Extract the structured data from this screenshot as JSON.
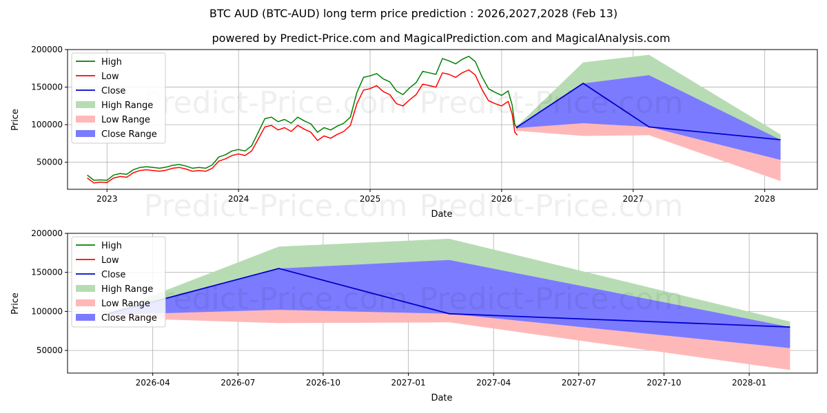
{
  "title": "BTC AUD (BTC-AUD) long term price prediction : 2026,2027,2028 (Feb 13)",
  "subtitle": "powered by Predict-Price.com and MagicalPrediction.com and MagicalAnalysis.com",
  "watermark": "Predict-Price.com",
  "colors": {
    "high": "#008000",
    "low": "#ff0000",
    "close": "#0000cc",
    "high_range": "#b7dcb3",
    "low_range": "#ffb8b8",
    "close_range": "#7b7bff"
  },
  "legend": {
    "high": "High",
    "low": "Low",
    "close": "Close",
    "high_range": "High Range",
    "low_range": "Low Range",
    "close_range": "Close Range"
  },
  "chart_data": [
    {
      "type": "line",
      "xlabel": "Date",
      "ylabel": "Price",
      "xlim": [
        2022.7,
        2028.4
      ],
      "ylim": [
        14000,
        200000
      ],
      "xticks": [
        {
          "v": 2023.0,
          "label": "2023"
        },
        {
          "v": 2024.0,
          "label": "2024"
        },
        {
          "v": 2025.0,
          "label": "2025"
        },
        {
          "v": 2026.0,
          "label": "2026"
        },
        {
          "v": 2027.0,
          "label": "2027"
        },
        {
          "v": 2028.0,
          "label": "2028"
        }
      ],
      "yticks": [
        {
          "v": 50000,
          "label": "50000"
        },
        {
          "v": 100000,
          "label": "100000"
        },
        {
          "v": 150000,
          "label": "150000"
        },
        {
          "v": 200000,
          "label": "200000"
        }
      ],
      "history": {
        "t": [
          2022.85,
          2022.9,
          2022.95,
          2023.0,
          2023.05,
          2023.1,
          2023.15,
          2023.2,
          2023.25,
          2023.3,
          2023.35,
          2023.4,
          2023.45,
          2023.5,
          2023.55,
          2023.6,
          2023.65,
          2023.7,
          2023.75,
          2023.8,
          2023.85,
          2023.9,
          2023.95,
          2024.0,
          2024.05,
          2024.1,
          2024.15,
          2024.2,
          2024.25,
          2024.3,
          2024.35,
          2024.4,
          2024.45,
          2024.5,
          2024.55,
          2024.6,
          2024.65,
          2024.7,
          2024.75,
          2024.8,
          2024.85,
          2024.9,
          2024.95,
          2025.0,
          2025.05,
          2025.1,
          2025.15,
          2025.2,
          2025.25,
          2025.3,
          2025.35,
          2025.4,
          2025.45,
          2025.5,
          2025.55,
          2025.6,
          2025.65,
          2025.7,
          2025.75,
          2025.8,
          2025.85,
          2025.9,
          2025.95,
          2026.0,
          2026.05,
          2026.08,
          2026.1,
          2026.12
        ],
        "close": [
          31000,
          24000,
          25000,
          24500,
          31000,
          33000,
          32000,
          38000,
          41000,
          42000,
          41000,
          40000,
          41500,
          44000,
          45000,
          43000,
          40000,
          41000,
          40000,
          44000,
          54000,
          57000,
          62000,
          64000,
          62000,
          68000,
          85000,
          102000,
          104000,
          98000,
          101000,
          96000,
          104000,
          99000,
          95000,
          84000,
          90000,
          87000,
          92000,
          96000,
          104000,
          135000,
          154000,
          156000,
          160000,
          152000,
          148000,
          136000,
          132000,
          141000,
          148000,
          162000,
          160000,
          158000,
          178000,
          176000,
          172000,
          178000,
          182000,
          175000,
          155000,
          140000,
          135000,
          132000,
          138000,
          120000,
          95000,
          90000
        ],
        "high": [
          33000,
          26000,
          26500,
          26000,
          33000,
          35000,
          34000,
          40000,
          43000,
          44000,
          43000,
          42000,
          43500,
          46000,
          47000,
          45000,
          42000,
          43000,
          42000,
          46500,
          57000,
          60000,
          65000,
          67000,
          65000,
          72000,
          90000,
          108000,
          110000,
          104000,
          107000,
          102000,
          110000,
          105000,
          101000,
          90000,
          96000,
          93000,
          98000,
          102000,
          110000,
          143000,
          163000,
          165000,
          168000,
          161000,
          157000,
          145000,
          140000,
          149000,
          156000,
          171000,
          169000,
          167000,
          188000,
          185000,
          181000,
          187000,
          191000,
          184000,
          164000,
          148000,
          143000,
          139000,
          145000,
          126000,
          100000,
          95000
        ],
        "low": [
          29000,
          22500,
          23500,
          23000,
          29000,
          31000,
          30000,
          36000,
          39000,
          40000,
          39000,
          38000,
          39500,
          42000,
          43000,
          41000,
          38000,
          39000,
          38000,
          42000,
          51500,
          54500,
          59000,
          61000,
          59000,
          65000,
          81000,
          97000,
          99000,
          93000,
          96000,
          91000,
          99000,
          94000,
          90000,
          79000,
          85000,
          82000,
          87000,
          91000,
          99000,
          128000,
          146000,
          148000,
          152000,
          144000,
          140000,
          128000,
          125000,
          133000,
          140000,
          154000,
          152000,
          150000,
          169000,
          167000,
          163000,
          169000,
          173000,
          166000,
          147000,
          132000,
          128000,
          125000,
          131000,
          114000,
          90000,
          86000
        ]
      },
      "forecast": {
        "t": [
          2026.11,
          2026.62,
          2027.12,
          2028.12
        ],
        "close": [
          96000,
          155000,
          97000,
          80000
        ],
        "high_upper": [
          97000,
          183000,
          193000,
          87000
        ],
        "close_upper": [
          96500,
          155000,
          166000,
          80000
        ],
        "close_lower": [
          95500,
          102000,
          97000,
          53000
        ],
        "low_lower": [
          92000,
          85000,
          86000,
          25000
        ],
        "low_upper": [
          95500,
          132000,
          97000,
          53000
        ]
      }
    },
    {
      "type": "area",
      "xlabel": "Date",
      "ylabel": "Price",
      "xlim": [
        2026.0,
        2028.2
      ],
      "ylim": [
        21000,
        200000
      ],
      "xticks": [
        {
          "v": 2026.25,
          "label": "2026-04"
        },
        {
          "v": 2026.5,
          "label": "2026-07"
        },
        {
          "v": 2026.75,
          "label": "2026-10"
        },
        {
          "v": 2027.0,
          "label": "2027-01"
        },
        {
          "v": 2027.25,
          "label": "2027-04"
        },
        {
          "v": 2027.5,
          "label": "2027-07"
        },
        {
          "v": 2027.75,
          "label": "2027-10"
        },
        {
          "v": 2028.0,
          "label": "2028-01"
        }
      ],
      "yticks": [
        {
          "v": 50000,
          "label": "50000"
        },
        {
          "v": 100000,
          "label": "100000"
        },
        {
          "v": 150000,
          "label": "150000"
        },
        {
          "v": 200000,
          "label": "200000"
        }
      ],
      "forecast": {
        "t": [
          2026.11,
          2026.62,
          2027.12,
          2028.12
        ],
        "close": [
          96000,
          155000,
          97000,
          80000
        ],
        "high_upper": [
          97000,
          183000,
          193000,
          87000
        ],
        "close_upper": [
          96500,
          155000,
          166000,
          80000
        ],
        "close_lower": [
          95500,
          102000,
          97000,
          53000
        ],
        "low_lower": [
          92000,
          85000,
          86000,
          25000
        ],
        "low_upper": [
          95500,
          132000,
          97000,
          53000
        ]
      }
    }
  ]
}
